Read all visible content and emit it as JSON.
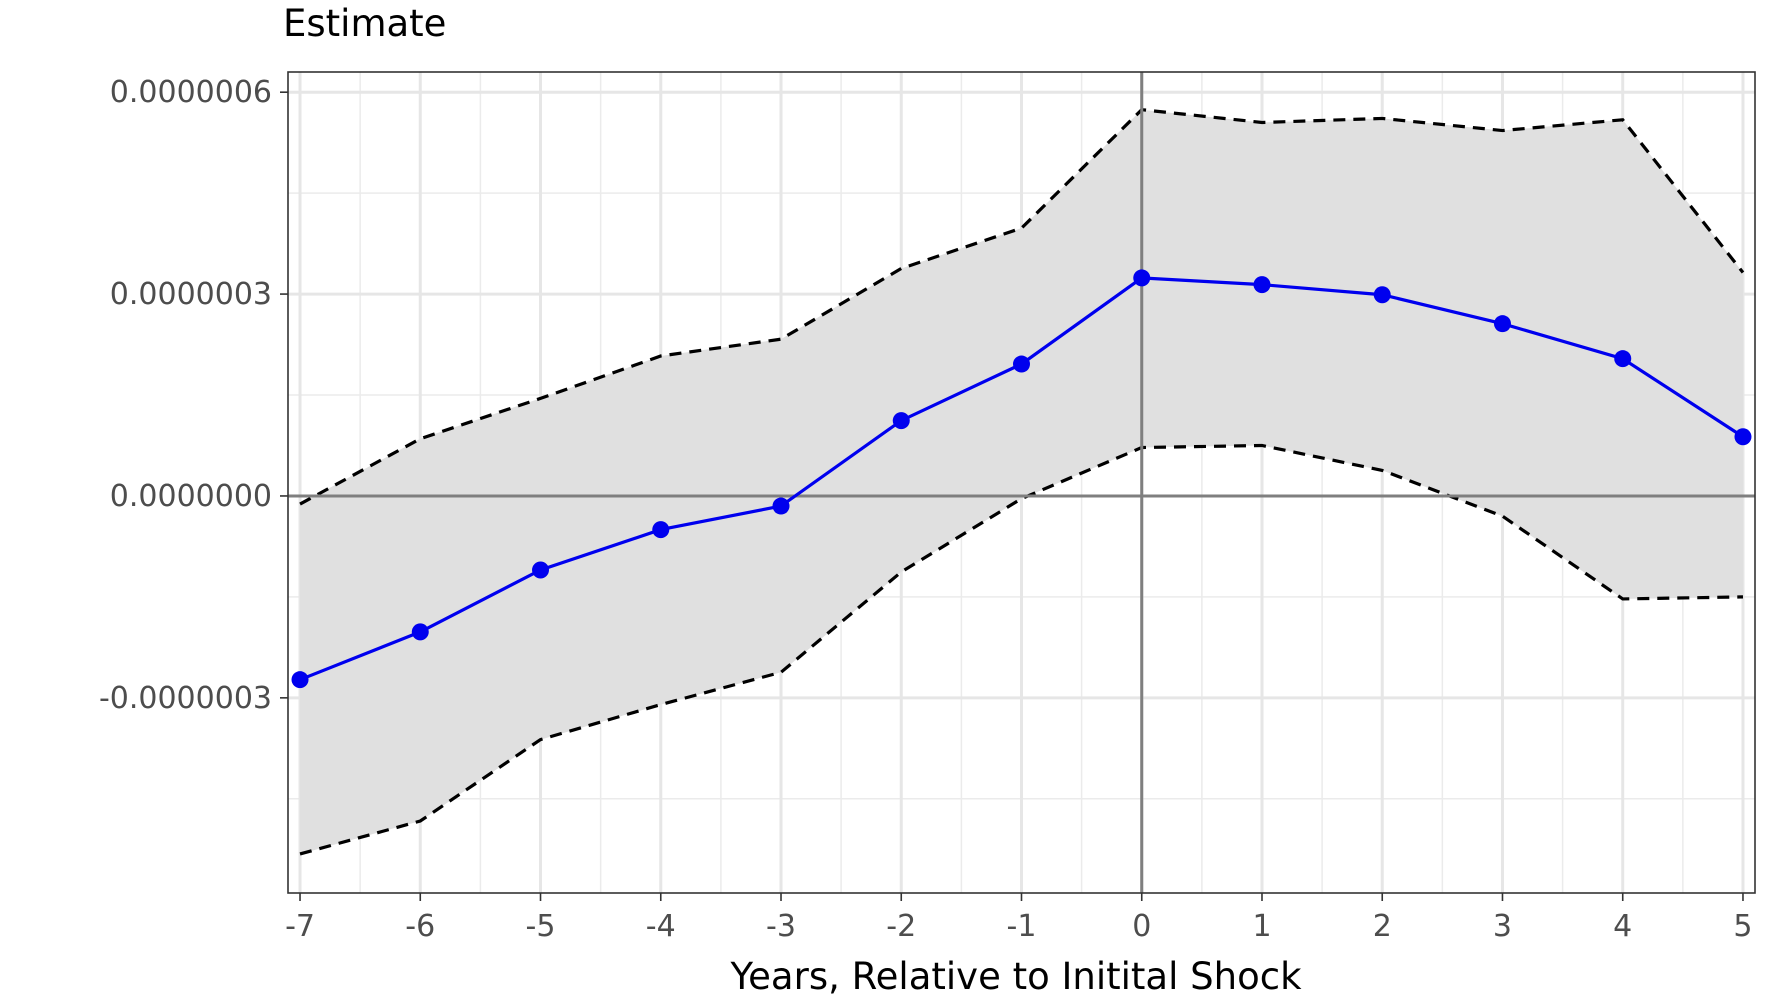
{
  "chart_data": {
    "type": "line",
    "title": "Estimate",
    "xlabel": "Years, Relative to Initital Shock",
    "ylabel": "",
    "x": [
      -7,
      -6,
      -5,
      -4,
      -3,
      -2,
      -1,
      0,
      1,
      2,
      3,
      4,
      5
    ],
    "xticks": [
      "-7",
      "-6",
      "-5",
      "-4",
      "-3",
      "-2",
      "-1",
      "0",
      "1",
      "2",
      "3",
      "4",
      "5"
    ],
    "yticks": [
      {
        "value": 6e-07,
        "label": "0.0000006"
      },
      {
        "value": 3e-07,
        "label": "0.0000003"
      },
      {
        "value": 0,
        "label": "0.0000000"
      },
      {
        "value": -3e-07,
        "label": "-0.0000003"
      }
    ],
    "xlim": [
      -7.1,
      5.1
    ],
    "ylim": [
      -5.9e-07,
      6.3e-07
    ],
    "grid": true,
    "reference_lines": {
      "x": 0,
      "y": 0
    },
    "series": [
      {
        "values": [
          -2.73e-07,
          -2.02e-07,
          -1.1e-07,
          -5e-08,
          -1.5e-08,
          1.12e-07,
          1.96e-07,
          3.24e-07,
          3.14e-07,
          2.99e-07,
          2.56e-07,
          2.04e-07,
          8.8e-08
        ],
        "color": "#0000ee",
        "marker": "circle",
        "style": "solid"
      }
    ],
    "confidence_band": {
      "upper": [
        -1.2e-08,
        8.5e-08,
        1.45e-07,
        2.08e-07,
        2.33e-07,
        3.38e-07,
        3.98e-07,
        5.74e-07,
        5.55e-07,
        5.61e-07,
        5.43e-07,
        5.59e-07,
        3.32e-07
      ],
      "lower": [
        -5.32e-07,
        -4.83e-07,
        -3.62e-07,
        -3.1e-07,
        -2.62e-07,
        -1.13e-07,
        -4e-09,
        7.2e-08,
        7.5e-08,
        3.8e-08,
        -3e-08,
        -1.53e-07,
        -1.5e-07
      ],
      "fill": "#e0e0e0",
      "line_style": "dashed",
      "line_color": "#000000"
    }
  }
}
